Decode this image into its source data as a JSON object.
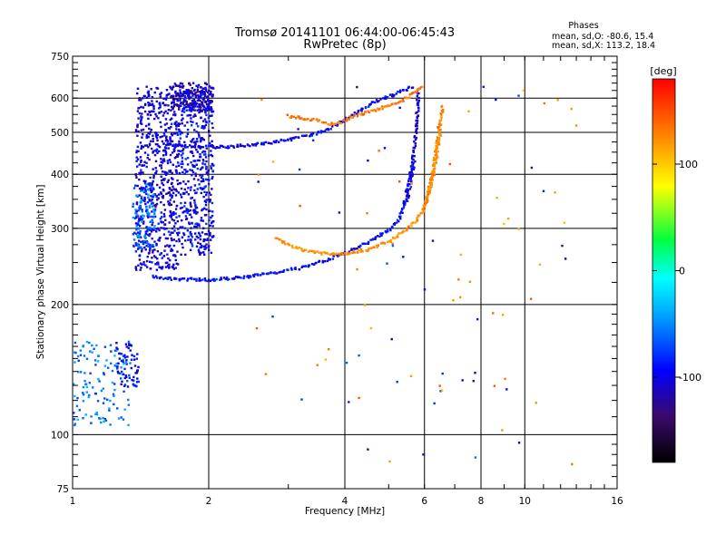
{
  "chart_data": {
    "type": "scatter",
    "title": "Tromsø 20141101 06:44:00-06:45:43",
    "subtitle": "RwPretec (8p)",
    "xlabel": "Frequency [MHz]",
    "ylabel": "Stationary phase Virtual Height [km]",
    "x_scale": "log",
    "y_scale": "log",
    "xlim": [
      1,
      16
    ],
    "ylim": [
      75,
      750
    ],
    "x_ticks": [
      1,
      2,
      4,
      6,
      8,
      10,
      16
    ],
    "x_tick_labels": [
      "1",
      "2",
      "4",
      "6",
      "8",
      "10",
      "16"
    ],
    "y_ticks": [
      75,
      100,
      200,
      300,
      400,
      500,
      600,
      750
    ],
    "y_tick_labels": [
      "75",
      "100",
      "200",
      "300",
      "400",
      "500",
      "600",
      "750"
    ],
    "grid": true,
    "legend": {
      "title": "Phases",
      "lines": [
        "mean, sd,O: -80.6, 15.4",
        "mean, sd,X: 113.2, 18.4"
      ]
    },
    "colorbar": {
      "label": "[deg]",
      "range": [
        -180,
        180
      ],
      "ticks": [
        100,
        0,
        -100
      ],
      "tick_labels": [
        "100",
        "0",
        "-100"
      ]
    },
    "traces": [
      {
        "id": "o-lower",
        "phase": -100,
        "points": [
          [
            1.5,
            232
          ],
          [
            1.7,
            229
          ],
          [
            2.0,
            228
          ],
          [
            2.4,
            231
          ],
          [
            2.8,
            237
          ],
          [
            3.2,
            243
          ],
          [
            3.6,
            252
          ],
          [
            4.0,
            263
          ],
          [
            4.5,
            278
          ],
          [
            5.0,
            297
          ],
          [
            5.3,
            318
          ],
          [
            5.5,
            350
          ],
          [
            5.6,
            390
          ],
          [
            5.7,
            430
          ]
        ]
      },
      {
        "id": "o-upper",
        "phase": -105,
        "points": [
          [
            1.6,
            470
          ],
          [
            1.9,
            462
          ],
          [
            2.2,
            463
          ],
          [
            2.6,
            470
          ],
          [
            3.0,
            480
          ],
          [
            3.4,
            495
          ],
          [
            3.7,
            510
          ],
          [
            4.0,
            535
          ],
          [
            4.3,
            560
          ],
          [
            4.6,
            585
          ],
          [
            4.9,
            600
          ],
          [
            5.2,
            615
          ],
          [
            5.5,
            630
          ],
          [
            5.7,
            640
          ]
        ]
      },
      {
        "id": "o-cusp",
        "phase": -110,
        "points": [
          [
            5.4,
            340
          ],
          [
            5.55,
            380
          ],
          [
            5.65,
            430
          ],
          [
            5.72,
            480
          ],
          [
            5.76,
            530
          ],
          [
            5.8,
            580
          ],
          [
            5.82,
            630
          ]
        ]
      },
      {
        "id": "x-lower",
        "phase": 120,
        "points": [
          [
            2.8,
            285
          ],
          [
            3.0,
            275
          ],
          [
            3.3,
            266
          ],
          [
            3.7,
            261
          ],
          [
            4.1,
            263
          ],
          [
            4.5,
            268
          ],
          [
            5.0,
            280
          ],
          [
            5.4,
            295
          ],
          [
            5.8,
            315
          ],
          [
            6.0,
            335
          ],
          [
            6.2,
            370
          ],
          [
            6.3,
            410
          ],
          [
            6.4,
            450
          ],
          [
            6.5,
            500
          ]
        ]
      },
      {
        "id": "x-upper",
        "phase": 130,
        "points": [
          [
            3.0,
            545
          ],
          [
            3.4,
            535
          ],
          [
            3.8,
            520
          ],
          [
            4.2,
            545
          ],
          [
            4.6,
            560
          ],
          [
            5.0,
            575
          ],
          [
            5.3,
            590
          ],
          [
            5.6,
            610
          ],
          [
            5.8,
            625
          ],
          [
            6.0,
            640
          ]
        ]
      },
      {
        "id": "x-cusp",
        "phase": 125,
        "points": [
          [
            6.0,
            330
          ],
          [
            6.15,
            370
          ],
          [
            6.3,
            420
          ],
          [
            6.4,
            470
          ],
          [
            6.5,
            520
          ],
          [
            6.6,
            580
          ]
        ]
      }
    ],
    "clusters": [
      {
        "id": "left-column",
        "phase": -110,
        "freq": [
          1.38,
          1.72
        ],
        "height": [
          240,
          640
        ],
        "count": 650
      },
      {
        "id": "right-column",
        "phase": -105,
        "freq": [
          1.72,
          2.05
        ],
        "height": [
          260,
          640
        ],
        "count": 480
      },
      {
        "id": "top-blob",
        "phase": -120,
        "freq": [
          1.65,
          2.05
        ],
        "height": [
          560,
          650
        ],
        "count": 150
      },
      {
        "id": "left-cyan",
        "phase": -75,
        "freq": [
          1.36,
          1.52
        ],
        "height": [
          270,
          380
        ],
        "count": 110
      },
      {
        "id": "low-cyan",
        "phase": -70,
        "freq": [
          1.0,
          1.35
        ],
        "height": [
          105,
          165
        ],
        "count": 130
      },
      {
        "id": "low-blue",
        "phase": -105,
        "freq": [
          1.25,
          1.4
        ],
        "height": [
          128,
          165
        ],
        "count": 60
      }
    ]
  }
}
